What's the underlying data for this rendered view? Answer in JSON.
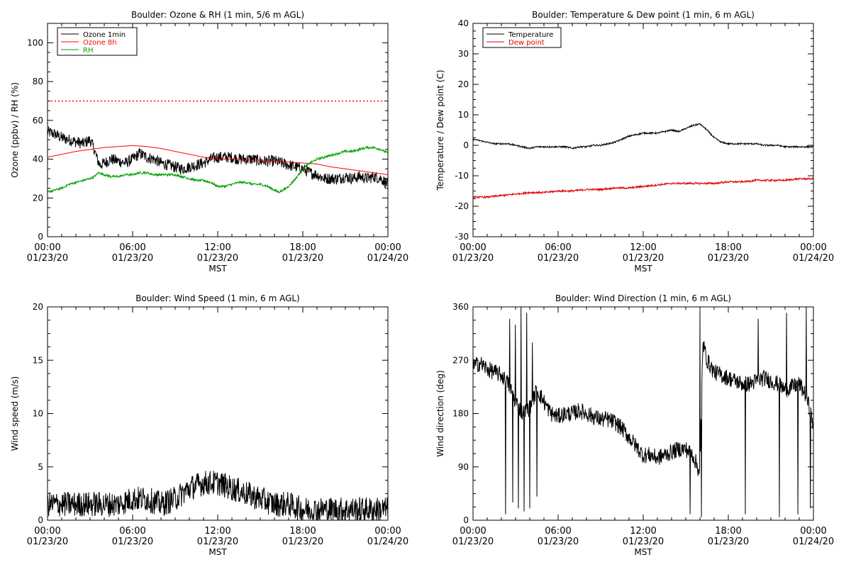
{
  "chart_data": [
    {
      "type": "line",
      "title": "Boulder: Ozone & RH (1 min, 5/6 m AGL)",
      "ylabel": "Ozone (ppbv) / RH (%)",
      "xlabel": "MST",
      "ylim": [
        0,
        110
      ],
      "yticks": [
        0,
        20,
        40,
        60,
        80,
        100
      ],
      "xlim": [
        0,
        24
      ],
      "xticks": [
        {
          "x": 0,
          "time": "00:00",
          "date": "01/23/20"
        },
        {
          "x": 6,
          "time": "06:00",
          "date": "01/23/20"
        },
        {
          "x": 12,
          "time": "12:00",
          "date": "01/23/20"
        },
        {
          "x": 18,
          "time": "18:00",
          "date": "01/23/20"
        },
        {
          "x": 24,
          "time": "00:00",
          "date": "01/24/20"
        }
      ],
      "legend": "top-left",
      "reference_lines": [
        {
          "y": 70,
          "color": "#ff0000",
          "style": "dotted"
        }
      ],
      "series": [
        {
          "name": "Ozone 1min",
          "color": "#000000",
          "x": [
            0,
            0.5,
            1,
            1.5,
            2,
            2.5,
            3,
            3.3,
            3.5,
            3.7,
            4,
            4.5,
            5,
            5.5,
            6,
            6.5,
            7,
            7.5,
            8,
            8.5,
            9,
            9.5,
            10,
            10.5,
            11,
            11.5,
            12,
            12.5,
            13,
            13.5,
            14,
            14.5,
            15,
            15.5,
            16,
            16.5,
            17,
            17.5,
            18,
            18.5,
            19,
            19.5,
            20,
            20.5,
            21,
            21.5,
            22,
            22.5,
            23,
            23.5,
            24
          ],
          "y": [
            54,
            53,
            51,
            50,
            49,
            48,
            50,
            45,
            40,
            37,
            38,
            40,
            39,
            38,
            40,
            43,
            41,
            40,
            38,
            37,
            36,
            35,
            36,
            37,
            38,
            40,
            41,
            41,
            41,
            40,
            40,
            40,
            39,
            39,
            39,
            38,
            37,
            36,
            35,
            33,
            32,
            30,
            30,
            30,
            31,
            30,
            31,
            30,
            31,
            30,
            27
          ],
          "noise": 3
        },
        {
          "name": "Ozone 8h",
          "color": "#ff0000",
          "x": [
            0,
            1,
            2,
            3,
            4,
            5,
            6,
            7,
            8,
            9,
            10,
            11,
            12,
            13,
            14,
            15,
            16,
            17,
            18,
            19,
            20,
            21,
            22,
            23,
            24
          ],
          "y": [
            41,
            42.5,
            44,
            45,
            46,
            46.5,
            47,
            46.5,
            45.5,
            44,
            42.5,
            41,
            40,
            40,
            39.5,
            39.5,
            39,
            38.5,
            38,
            37.5,
            36,
            35,
            34,
            33,
            32
          ]
        },
        {
          "name": "RH",
          "color": "#00a000",
          "x": [
            0,
            0.5,
            1,
            1.5,
            2,
            2.5,
            3,
            3.3,
            3.6,
            4,
            4.5,
            5,
            5.5,
            6,
            6.5,
            7,
            7.5,
            8,
            8.5,
            9,
            9.5,
            10,
            10.5,
            11,
            11.5,
            12,
            12.5,
            13,
            13.5,
            14,
            14.5,
            15,
            15.5,
            16,
            16.3,
            16.6,
            17,
            17.5,
            18,
            18.5,
            19,
            19.5,
            20,
            20.5,
            21,
            21.5,
            22,
            22.5,
            23,
            23.5,
            24
          ],
          "y": [
            23,
            24,
            25,
            27,
            28,
            29,
            30,
            31,
            33,
            32,
            31,
            31,
            32,
            32,
            33,
            33,
            32,
            32,
            32,
            32,
            31,
            30,
            29,
            29,
            28,
            26,
            26,
            27,
            28,
            28,
            27,
            27,
            26,
            24,
            23,
            24,
            26,
            30,
            35,
            38,
            40,
            41,
            42,
            43,
            44,
            44,
            45,
            46,
            46,
            45,
            43
          ],
          "noise": 0.6
        }
      ]
    },
    {
      "type": "line",
      "title": "Boulder: Temperature & Dew point (1 min, 6 m AGL)",
      "ylabel": "Temperature / Dew point (C)",
      "xlabel": "MST",
      "ylim": [
        -30,
        40
      ],
      "yticks": [
        -30,
        -20,
        -10,
        0,
        10,
        20,
        30,
        40
      ],
      "xlim": [
        0,
        24
      ],
      "xticks": [
        {
          "x": 0,
          "time": "00:00",
          "date": "01/23/20"
        },
        {
          "x": 6,
          "time": "06:00",
          "date": "01/23/20"
        },
        {
          "x": 12,
          "time": "12:00",
          "date": "01/23/20"
        },
        {
          "x": 18,
          "time": "18:00",
          "date": "01/23/20"
        },
        {
          "x": 24,
          "time": "00:00",
          "date": "01/24/20"
        }
      ],
      "legend": "top-left",
      "series": [
        {
          "name": "Temperature",
          "color": "#000000",
          "x": [
            0,
            0.5,
            1,
            1.5,
            2,
            2.5,
            3,
            3.5,
            4,
            4.5,
            5,
            5.5,
            6,
            6.5,
            7,
            7.5,
            8,
            8.5,
            9,
            9.5,
            10,
            10.5,
            11,
            11.5,
            12,
            12.5,
            13,
            13.5,
            14,
            14.5,
            15,
            15.5,
            16,
            16.5,
            17,
            17.5,
            18,
            18.5,
            19,
            19.5,
            20,
            20.5,
            21,
            21.5,
            22,
            22.5,
            23,
            23.5,
            24
          ],
          "y": [
            2,
            1.5,
            1,
            0.5,
            0.5,
            0.5,
            0,
            -0.5,
            -1,
            -0.5,
            -0.5,
            -0.5,
            -0.5,
            -0.5,
            -1,
            -0.5,
            -0.5,
            0,
            0,
            0.5,
            1,
            2,
            3,
            3.5,
            4,
            4,
            4,
            4.5,
            5,
            4.5,
            5.5,
            6.5,
            7,
            5,
            2.5,
            1,
            0.5,
            0.5,
            0.5,
            0.5,
            0.5,
            0,
            0,
            0,
            -0.5,
            -0.5,
            -0.5,
            -0.5,
            -0.5
          ],
          "noise": 0.25
        },
        {
          "name": "Dew point",
          "color": "#dd0000",
          "x": [
            0,
            1,
            2,
            3,
            4,
            5,
            6,
            7,
            8,
            9,
            10,
            11,
            12,
            13,
            14,
            15,
            16,
            17,
            18,
            19,
            20,
            21,
            22,
            23,
            24
          ],
          "y": [
            -17,
            -17,
            -16.5,
            -16,
            -15.5,
            -15.5,
            -15,
            -15,
            -14.5,
            -14.5,
            -14,
            -14,
            -13.5,
            -13,
            -12.5,
            -12.5,
            -12.5,
            -12.5,
            -12,
            -12,
            -11.5,
            -11.5,
            -11.5,
            -11,
            -11
          ],
          "noise": 0.3
        }
      ]
    },
    {
      "type": "line",
      "title": "Boulder: Wind Speed (1 min, 6 m AGL)",
      "ylabel": "Wind speed (m/s)",
      "xlabel": "MST",
      "ylim": [
        0,
        20
      ],
      "yticks": [
        0,
        5,
        10,
        15,
        20
      ],
      "xlim": [
        0,
        24
      ],
      "xticks": [
        {
          "x": 0,
          "time": "00:00",
          "date": "01/23/20"
        },
        {
          "x": 6,
          "time": "06:00",
          "date": "01/23/20"
        },
        {
          "x": 12,
          "time": "12:00",
          "date": "01/23/20"
        },
        {
          "x": 18,
          "time": "18:00",
          "date": "01/23/20"
        },
        {
          "x": 24,
          "time": "00:00",
          "date": "01/24/20"
        }
      ],
      "series": [
        {
          "color": "#000000",
          "x": [
            0,
            1,
            2,
            3,
            4,
            5,
            6,
            7,
            8,
            9,
            10,
            11,
            12,
            13,
            14,
            15,
            16,
            17,
            18,
            19,
            20,
            21,
            22,
            23,
            24
          ],
          "y": [
            1.5,
            1.5,
            1.5,
            1.5,
            1.5,
            1.5,
            2,
            2,
            1.5,
            2,
            3,
            3.5,
            3.5,
            3,
            2.5,
            2,
            1.5,
            1.5,
            1,
            1,
            1,
            1,
            1,
            1,
            1
          ],
          "noise": 1.2
        }
      ]
    },
    {
      "type": "line",
      "title": "Boulder: Wind Direction (1 min, 6 m AGL)",
      "ylabel": "Wind direction (deg)",
      "xlabel": "MST",
      "ylim": [
        0,
        360
      ],
      "yticks": [
        0,
        90,
        180,
        270,
        360
      ],
      "xlim": [
        0,
        24
      ],
      "xticks": [
        {
          "x": 0,
          "time": "00:00",
          "date": "01/23/20"
        },
        {
          "x": 6,
          "time": "06:00",
          "date": "01/23/20"
        },
        {
          "x": 12,
          "time": "12:00",
          "date": "01/23/20"
        },
        {
          "x": 18,
          "time": "18:00",
          "date": "01/23/20"
        },
        {
          "x": 24,
          "time": "00:00",
          "date": "01/24/20"
        }
      ],
      "series": [
        {
          "color": "#000000",
          "x": [
            0,
            0.5,
            1,
            1.5,
            2,
            2.5,
            3,
            3.5,
            4,
            4.5,
            5,
            5.5,
            6,
            6.5,
            7,
            7.5,
            8,
            8.5,
            9,
            9.5,
            10,
            10.5,
            11,
            11.5,
            12,
            12.5,
            13,
            13.5,
            14,
            14.5,
            15,
            15.5,
            16,
            16.2,
            16.5,
            17,
            17.5,
            18,
            18.5,
            19,
            19.5,
            20,
            20.5,
            21,
            21.5,
            22,
            22.5,
            23,
            23.5,
            24
          ],
          "y": [
            260,
            265,
            255,
            250,
            245,
            230,
            200,
            180,
            190,
            220,
            200,
            180,
            175,
            180,
            180,
            185,
            180,
            175,
            170,
            170,
            165,
            155,
            140,
            125,
            110,
            110,
            105,
            110,
            115,
            120,
            120,
            110,
            80,
            300,
            270,
            250,
            245,
            240,
            235,
            230,
            230,
            235,
            240,
            235,
            230,
            220,
            225,
            230,
            210,
            160
          ],
          "noise": 14,
          "spikes": [
            {
              "x": 2.3,
              "y": 10
            },
            {
              "x": 2.6,
              "y": 340
            },
            {
              "x": 2.8,
              "y": 30
            },
            {
              "x": 3.0,
              "y": 330
            },
            {
              "x": 3.2,
              "y": 20
            },
            {
              "x": 3.4,
              "y": 360
            },
            {
              "x": 3.6,
              "y": 15
            },
            {
              "x": 3.8,
              "y": 350
            },
            {
              "x": 4.0,
              "y": 20
            },
            {
              "x": 4.2,
              "y": 300
            },
            {
              "x": 4.5,
              "y": 40
            },
            {
              "x": 15.3,
              "y": 10
            },
            {
              "x": 16.0,
              "y": 355
            },
            {
              "x": 16.1,
              "y": 5
            },
            {
              "x": 19.2,
              "y": 10
            },
            {
              "x": 20.1,
              "y": 340
            },
            {
              "x": 21.6,
              "y": 5
            },
            {
              "x": 22.1,
              "y": 350
            },
            {
              "x": 22.9,
              "y": 10
            },
            {
              "x": 23.5,
              "y": 360
            },
            {
              "x": 23.8,
              "y": 20
            }
          ]
        }
      ]
    }
  ]
}
